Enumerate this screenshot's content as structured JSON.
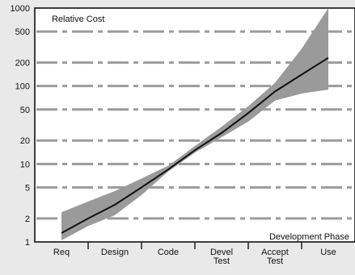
{
  "chart_data": {
    "type": "area",
    "ylabel": "Relative Cost",
    "xlabel": "Development Phase",
    "y_scale": "log",
    "ylim": [
      1,
      1000
    ],
    "y_ticks": [
      1,
      2,
      5,
      10,
      20,
      50,
      100,
      200,
      500,
      1000
    ],
    "y_tick_labels": [
      "1",
      "2",
      "5",
      "10",
      "20",
      "50",
      "100",
      "200",
      "500",
      "1000"
    ],
    "categories": [
      "Req",
      "Design",
      "Code",
      "Devel Test",
      "Accept Test",
      "Use"
    ],
    "grid": true,
    "series": [
      {
        "name": "",
        "kind": "median-line",
        "x": [
          0,
          0.5,
          1,
          1.5,
          2,
          2.5,
          3,
          3.5,
          4,
          4.5,
          5
        ],
        "values": [
          1.3,
          2.0,
          3.0,
          5.0,
          8.5,
          15,
          25,
          45,
          85,
          140,
          230
        ]
      },
      {
        "name": "",
        "kind": "range-band",
        "x": [
          0,
          0.5,
          1,
          1.5,
          2,
          2.5,
          3,
          3.5,
          4,
          4.5,
          5
        ],
        "low": [
          1.05,
          1.6,
          2.2,
          4.0,
          8.0,
          14,
          22,
          35,
          65,
          80,
          90
        ],
        "high": [
          2.4,
          3.3,
          4.5,
          6.5,
          9.5,
          17,
          30,
          55,
          110,
          300,
          1000
        ]
      }
    ]
  }
}
